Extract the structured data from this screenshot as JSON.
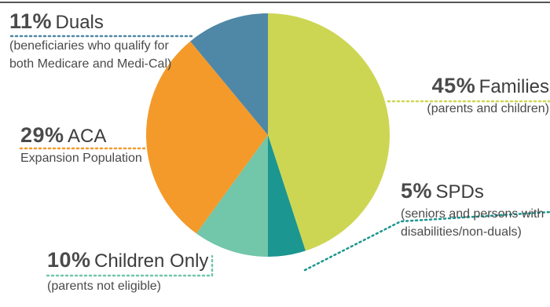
{
  "chart_data": {
    "type": "pie",
    "title": "",
    "slices": [
      {
        "pct_label": "45%",
        "value": 45,
        "name": "Families",
        "desc": "(parents and children)",
        "color": "#cdd652"
      },
      {
        "pct_label": "5%",
        "value": 5,
        "name": "SPDs",
        "desc": "(seniors and persons with disabilities/non-duals)",
        "color": "#1b9690"
      },
      {
        "pct_label": "10%",
        "value": 10,
        "name": "Children Only",
        "desc": "(parents not eligible)",
        "color": "#72c6aa"
      },
      {
        "pct_label": "29%",
        "value": 29,
        "name": "ACA",
        "desc": "Expansion Population",
        "color": "#f39a2b"
      },
      {
        "pct_label": "11%",
        "value": 11,
        "name": "Duals",
        "desc": "(beneficiaries who qualify for both Medicare and Medi-Cal)",
        "color": "#4f87a6"
      }
    ]
  }
}
